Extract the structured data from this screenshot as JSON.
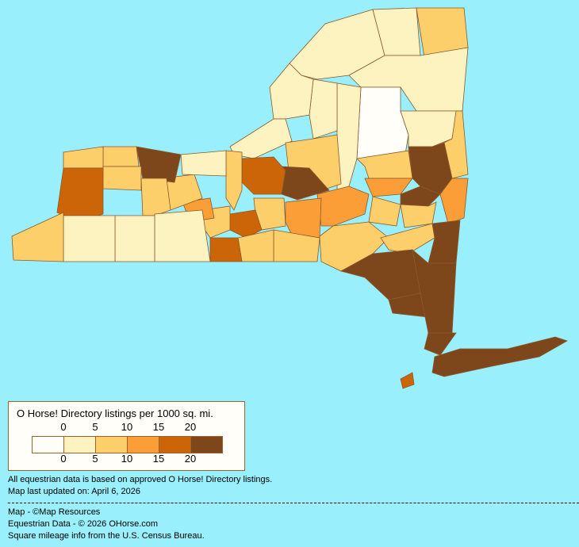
{
  "legend": {
    "title": "O Horse! Directory listings per 1000 sq. mi.",
    "labels": [
      "0",
      "5",
      "10",
      "15",
      "20"
    ],
    "colors": [
      "#fffef8",
      "#fdf3c0",
      "#fdcf6a",
      "#fb9e38",
      "#cc6508",
      "#7d461b"
    ]
  },
  "background_color": "#99effc",
  "border_color": "#8a5a2b",
  "county_levels": [
    1,
    1,
    2,
    1,
    0,
    1,
    1,
    1,
    1,
    1,
    2,
    5,
    2,
    3,
    5,
    3,
    2,
    5,
    4,
    2,
    3,
    2,
    2,
    3,
    2,
    4,
    2,
    2,
    5,
    5,
    5,
    5,
    2,
    2,
    4,
    2,
    3,
    2,
    1,
    5,
    2,
    2,
    2,
    4,
    2,
    1,
    1,
    1,
    2,
    5,
    5,
    4
  ],
  "notes": {
    "data_basis": "All equestrian data is based on approved O Horse! Directory listings.",
    "updated": "Map last updated on: April 6, 2026"
  },
  "credits": {
    "map": "Map - ©Map Resources",
    "data": "Equestrian Data - © 2026 OHorse.com",
    "census": "Square mileage info from the U.S. Census Bureau."
  }
}
